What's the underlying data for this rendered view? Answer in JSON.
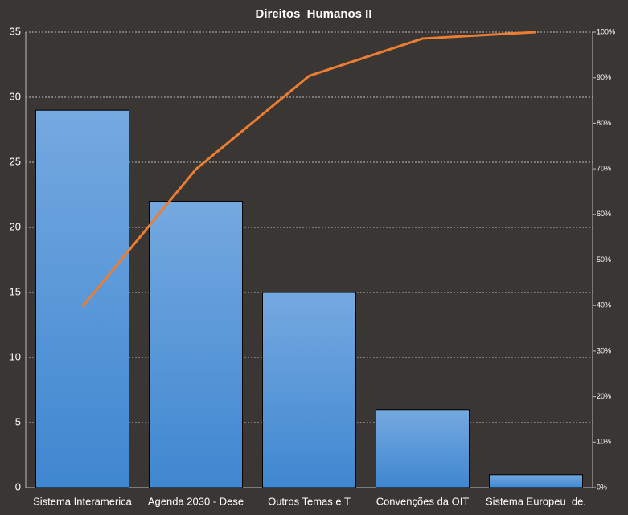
{
  "chart_data": {
    "type": "bar",
    "title": "Direitos  Humanos II",
    "categories": [
      "Sistema Interamerica",
      "Agenda 2030 - Dese",
      "Outros Temas e T",
      "Convenções da OIT",
      "Sistema Europeu  de."
    ],
    "series": [
      {
        "color": "#5b9bd5",
        "values": [
          29,
          22,
          15,
          6,
          1
        ]
      },
      {
        "type": "line",
        "axis": "y2",
        "color": "#ed7d31",
        "values": [
          39.7,
          69.9,
          90.4,
          98.6,
          100
        ]
      }
    ],
    "ylim": [
      0,
      35
    ],
    "yticks": [
      0,
      5,
      10,
      15,
      20,
      25,
      30,
      35
    ],
    "y2lim": [
      0,
      100
    ],
    "y2ticks": [
      {
        "value": 0,
        "label": "0%"
      },
      {
        "value": 10,
        "label": "10%"
      },
      {
        "value": 20,
        "label": "20%"
      },
      {
        "value": 30,
        "label": "30%"
      },
      {
        "value": 40,
        "label": "40%"
      },
      {
        "value": 50,
        "label": "50%"
      },
      {
        "value": 60,
        "label": "60%"
      },
      {
        "value": 70,
        "label": "70%"
      },
      {
        "value": 80,
        "label": "80%"
      },
      {
        "value": 90,
        "label": "90%"
      },
      {
        "value": 100,
        "label": "100%"
      }
    ],
    "grid": true
  }
}
